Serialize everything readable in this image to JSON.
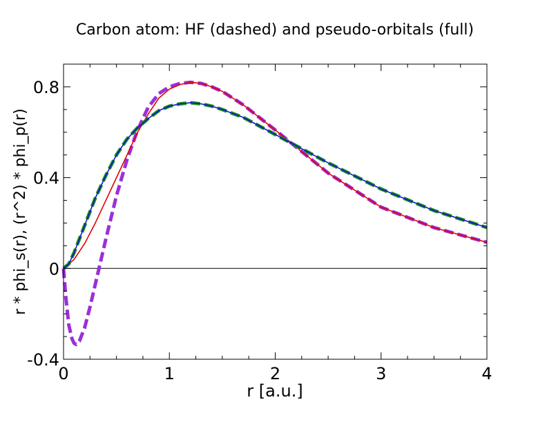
{
  "chart_data": {
    "type": "line",
    "title": "Carbon atom: HF (dashed) and pseudo-orbitals (full)",
    "xlabel": "r [a.u.]",
    "ylabel": "r * phi_s(r),  (r^2) * phi_p(r)",
    "xlim": [
      0,
      4
    ],
    "ylim": [
      -0.4,
      0.9
    ],
    "x_ticks": [
      0,
      1,
      2,
      3,
      4
    ],
    "x_tick_labels": [
      "0",
      "1",
      "2",
      "3",
      "4"
    ],
    "y_ticks": [
      -0.4,
      0,
      0.4,
      0.8
    ],
    "y_tick_labels": [
      "-0.4",
      "0",
      "0.4",
      "0.8"
    ],
    "zero_line": true,
    "grid": false,
    "series": [
      {
        "style": "dashed",
        "color": "#9b30d9",
        "x": [
          0,
          0.02,
          0.05,
          0.08,
          0.1,
          0.12,
          0.15,
          0.2,
          0.25,
          0.3,
          0.35,
          0.4,
          0.5,
          0.6,
          0.7,
          0.8,
          0.9,
          1.0,
          1.1,
          1.2,
          1.3,
          1.4,
          1.5,
          1.7,
          2.0,
          2.5,
          3.0,
          3.5,
          4.0
        ],
        "y": [
          0,
          -0.12,
          -0.25,
          -0.31,
          -0.33,
          -0.335,
          -0.32,
          -0.26,
          -0.17,
          -0.07,
          0.03,
          0.13,
          0.32,
          0.48,
          0.61,
          0.71,
          0.77,
          0.8,
          0.815,
          0.82,
          0.815,
          0.8,
          0.78,
          0.72,
          0.61,
          0.42,
          0.27,
          0.18,
          0.115
        ]
      },
      {
        "style": "solid",
        "color": "#e00000",
        "x": [
          0,
          0.1,
          0.2,
          0.3,
          0.4,
          0.5,
          0.6,
          0.7,
          0.8,
          0.9,
          1.0,
          1.1,
          1.2,
          1.3,
          1.4,
          1.5,
          1.7,
          2.0,
          2.5,
          3.0,
          3.5,
          4.0
        ],
        "y": [
          0,
          0.04,
          0.11,
          0.2,
          0.3,
          0.4,
          0.5,
          0.6,
          0.68,
          0.75,
          0.79,
          0.81,
          0.82,
          0.815,
          0.8,
          0.78,
          0.72,
          0.61,
          0.42,
          0.27,
          0.18,
          0.115
        ]
      },
      {
        "style": "dashed",
        "color": "#1f8f1f",
        "x": [
          0,
          0.05,
          0.1,
          0.2,
          0.3,
          0.4,
          0.5,
          0.6,
          0.7,
          0.8,
          0.9,
          1.0,
          1.1,
          1.2,
          1.3,
          1.4,
          1.5,
          1.7,
          2.0,
          2.2,
          2.5,
          3.0,
          3.5,
          4.0
        ],
        "y": [
          0,
          0.02,
          0.07,
          0.19,
          0.31,
          0.41,
          0.5,
          0.57,
          0.62,
          0.66,
          0.695,
          0.715,
          0.725,
          0.73,
          0.725,
          0.715,
          0.7,
          0.665,
          0.59,
          0.54,
          0.465,
          0.35,
          0.255,
          0.18
        ]
      },
      {
        "style": "solid",
        "color": "#1010d0",
        "x": [
          0,
          0.05,
          0.1,
          0.2,
          0.3,
          0.4,
          0.5,
          0.6,
          0.7,
          0.8,
          0.9,
          1.0,
          1.1,
          1.2,
          1.3,
          1.4,
          1.5,
          1.7,
          2.0,
          2.2,
          2.5,
          3.0,
          3.5,
          4.0
        ],
        "y": [
          0,
          0.02,
          0.07,
          0.19,
          0.31,
          0.41,
          0.5,
          0.57,
          0.62,
          0.66,
          0.695,
          0.715,
          0.725,
          0.73,
          0.725,
          0.715,
          0.7,
          0.665,
          0.59,
          0.54,
          0.465,
          0.35,
          0.255,
          0.18
        ]
      }
    ]
  }
}
